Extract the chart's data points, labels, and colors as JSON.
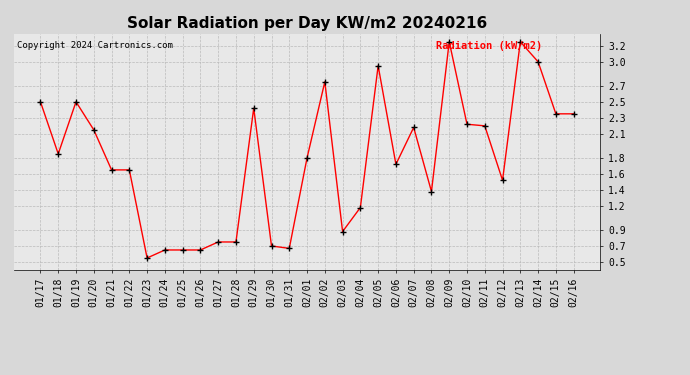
{
  "title": "Solar Radiation per Day KW/m2 20240216",
  "copyright": "Copyright 2024 Cartronics.com",
  "ylabel": "Radiation (kW/m2)",
  "dates": [
    "01/17",
    "01/18",
    "01/19",
    "01/20",
    "01/21",
    "01/22",
    "01/23",
    "01/24",
    "01/25",
    "01/26",
    "01/27",
    "01/28",
    "01/29",
    "01/30",
    "01/31",
    "02/01",
    "02/02",
    "02/03",
    "02/04",
    "02/05",
    "02/06",
    "02/07",
    "02/08",
    "02/09",
    "02/10",
    "02/11",
    "02/12",
    "02/13",
    "02/14",
    "02/15",
    "02/16"
  ],
  "values": [
    2.5,
    1.85,
    2.5,
    2.15,
    1.65,
    1.65,
    0.55,
    0.65,
    0.65,
    0.65,
    0.75,
    0.75,
    2.42,
    0.7,
    0.67,
    1.8,
    2.75,
    0.88,
    1.18,
    2.95,
    1.72,
    2.18,
    1.38,
    3.25,
    2.22,
    2.2,
    1.52,
    3.25,
    3.0,
    2.35,
    2.35
  ],
  "line_color": "red",
  "marker_color": "black",
  "background_color": "#d8d8d8",
  "plot_bg_color": "#e8e8e8",
  "ylim": [
    0.4,
    3.35
  ],
  "yticks": [
    0.5,
    0.7,
    0.9,
    1.2,
    1.4,
    1.6,
    1.8,
    2.1,
    2.3,
    2.5,
    2.7,
    3.0,
    3.2
  ],
  "grid_color": "#bbbbbb",
  "title_fontsize": 11,
  "label_fontsize": 7,
  "copyright_fontsize": 6.5
}
